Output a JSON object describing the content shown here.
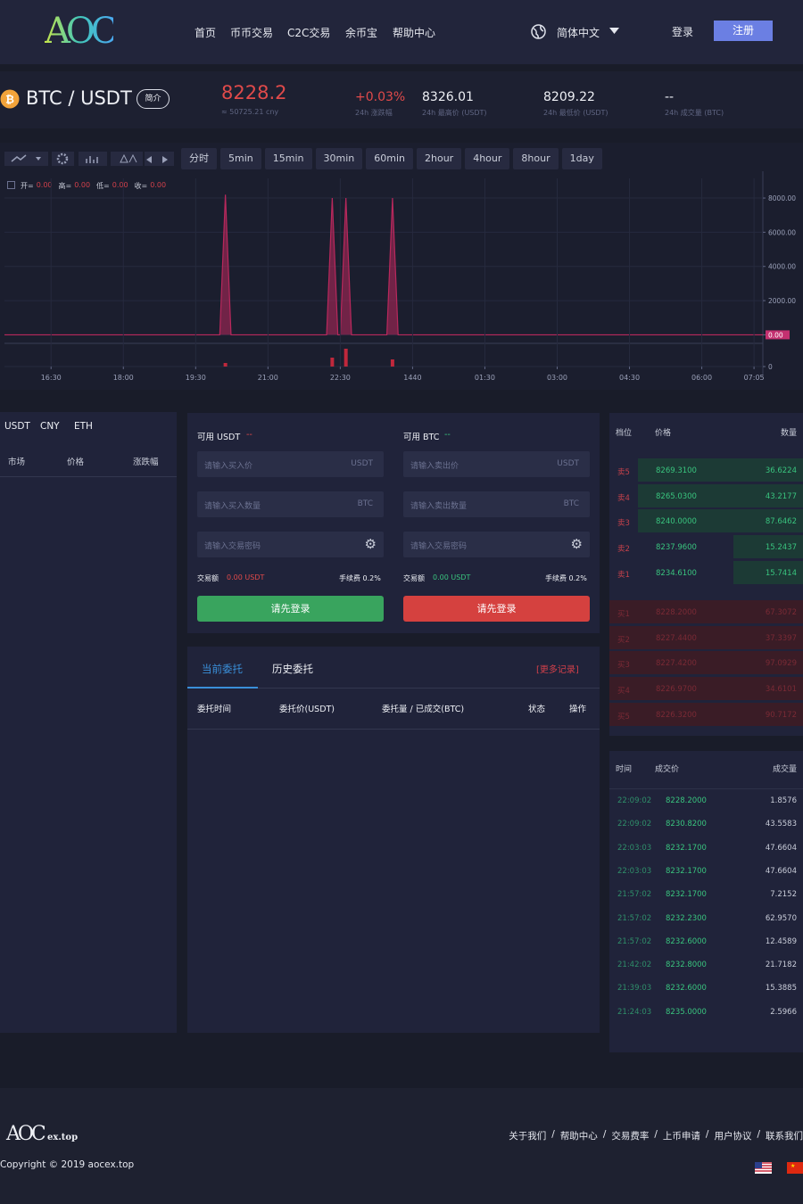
{
  "header": {
    "logo": "AOC",
    "nav": [
      "首页",
      "币币交易",
      "C2C交易",
      "余币宝",
      "帮助中心"
    ],
    "language": "简体中文",
    "login": "登录",
    "register": "注册"
  },
  "ticker": {
    "pair": "BTC / USDT",
    "intro": "简介",
    "price": "8228.2",
    "price_cny": "≈ 50725.21 cny",
    "stats": [
      {
        "value": "+0.03%",
        "label": "24h 涨跌幅"
      },
      {
        "value": "8326.01",
        "label": "24h 最高价 (USDT)"
      },
      {
        "value": "8209.22",
        "label": "24h 最低价 (USDT)"
      },
      {
        "value": "--",
        "label": "24h 成交量 (BTC)"
      }
    ]
  },
  "kline_toolbar": [
    "分时",
    "5min",
    "15min",
    "30min",
    "60min",
    "2hour",
    "4hour",
    "8hour",
    "1day"
  ],
  "kline_info": [
    {
      "label": "开=",
      "value": "0.00"
    },
    {
      "label": "高=",
      "value": "0.00"
    },
    {
      "label": "低=",
      "value": "0.00"
    },
    {
      "label": "收=",
      "value": "0.00"
    }
  ],
  "chart_data": [
    {
      "type": "area",
      "color": "#b8285c",
      "x": [
        932,
        1200,
        1207,
        1214,
        1333,
        1340,
        1347,
        1350,
        1357,
        1364,
        1408,
        1415,
        1422,
        1876
      ],
      "values": [
        0,
        0,
        8200,
        0,
        0,
        8000,
        0,
        0,
        8000,
        0,
        0,
        8000,
        0,
        0
      ],
      "xlim": [
        932,
        1876
      ],
      "ylim": [
        -500,
        9150
      ],
      "yticks": [
        {
          "value": 0,
          "label": "0.00"
        },
        {
          "value": 2000,
          "label": "2000.00"
        },
        {
          "value": 4000,
          "label": "4000.00"
        },
        {
          "value": 6000,
          "label": "6000.00"
        },
        {
          "value": 8000,
          "label": "8000.00"
        }
      ],
      "grid": true
    },
    {
      "type": "bar",
      "color": "#c0283c",
      "x": [
        1207,
        1340,
        1357,
        1415
      ],
      "values": [
        4,
        10,
        20,
        8
      ],
      "xlim": [
        932,
        1876
      ],
      "ylim": [
        0,
        23
      ],
      "yticks": [
        0
      ],
      "xticks": [
        {
          "value": 990,
          "label": "16:30"
        },
        {
          "value": 1080,
          "label": "18:00"
        },
        {
          "value": 1170,
          "label": "19:30"
        },
        {
          "value": 1260,
          "label": "21:00"
        },
        {
          "value": 1350,
          "label": "22:30"
        },
        1440,
        {
          "value": 1530,
          "label": "01:30"
        },
        {
          "value": 1620,
          "label": "03:00"
        },
        {
          "value": 1710,
          "label": "04:30"
        },
        {
          "value": 1800,
          "label": "06:00"
        },
        {
          "value": 1865,
          "label": "07:05"
        }
      ],
      "grid": true
    }
  ],
  "market": {
    "tabs": [
      "USDT",
      "CNY",
      "ETH"
    ],
    "headers": [
      "市场",
      "价格",
      "涨跌幅"
    ]
  },
  "trade_form": {
    "buy": {
      "available_label": "可用 USDT",
      "available": "--",
      "price_placeholder": "请输入买入价",
      "price_unit": "USDT",
      "amount_placeholder": "请输入买入数量",
      "amount_unit": "BTC",
      "password_placeholder": "请输入交易密码",
      "total_label": "交易额",
      "total": "0.00 USDT",
      "fee": "手续费 0.2%",
      "button": "请先登录"
    },
    "sell": {
      "available_label": "可用 BTC",
      "available": "--",
      "price_placeholder": "请输入卖出价",
      "price_unit": "USDT",
      "amount_placeholder": "请输入卖出数量",
      "amount_unit": "BTC",
      "password_placeholder": "请输入交易密码",
      "total_label": "交易额",
      "total": "0.00 USDT",
      "fee": "手续费 0.2%",
      "button": "请先登录"
    }
  },
  "orders": {
    "tabs": [
      "当前委托",
      "历史委托"
    ],
    "more": "[更多记录]",
    "headers": [
      "委托时间",
      "委托价(USDT)",
      "委托量 / 已成交(BTC)",
      "状态",
      "操作"
    ]
  },
  "order_book": {
    "headers": [
      "档位",
      "价格",
      "数量"
    ],
    "asks": [
      [
        "卖5",
        "8269.3100",
        "36.6224"
      ],
      [
        "卖4",
        "8265.0300",
        "43.2177"
      ],
      [
        "卖3",
        "8240.0000",
        "87.6462"
      ],
      [
        "卖2",
        "8237.9600",
        "15.2437"
      ],
      [
        "卖1",
        "8234.6100",
        "15.7414"
      ]
    ],
    "bids": [
      [
        "买1",
        "8228.2000",
        "67.3072"
      ],
      [
        "买2",
        "8227.4400",
        "37.3397"
      ],
      [
        "买3",
        "8227.4200",
        "97.0929"
      ],
      [
        "买4",
        "8226.9700",
        "34.6101"
      ],
      [
        "买5",
        "8226.3200",
        "90.7172"
      ]
    ]
  },
  "trades": {
    "headers": [
      "时间",
      "成交价",
      "成交量"
    ],
    "rows": [
      [
        "22:09:02",
        "8228.2000",
        "1.8576"
      ],
      [
        "22:09:02",
        "8230.8200",
        "43.5583"
      ],
      [
        "22:03:03",
        "8232.1700",
        "47.6604"
      ],
      [
        "22:03:03",
        "8232.1700",
        "47.6604"
      ],
      [
        "21:57:02",
        "8232.1700",
        "7.2152"
      ],
      [
        "21:57:02",
        "8232.2300",
        "62.9570"
      ],
      [
        "21:57:02",
        "8232.6000",
        "12.4589"
      ],
      [
        "21:42:02",
        "8232.8000",
        "21.7182"
      ],
      [
        "21:39:03",
        "8232.6000",
        "15.3885"
      ],
      [
        "21:24:03",
        "8235.0000",
        "2.5966"
      ]
    ]
  },
  "footer": {
    "logo": "AOC",
    "logo_suffix": "ex.top",
    "links": [
      "关于我们",
      "帮助中心",
      "交易费率",
      "上币申请",
      "用户协议",
      "联系我们"
    ],
    "separator": "/",
    "copyright": "Copyright © 2019 aocex.top"
  }
}
